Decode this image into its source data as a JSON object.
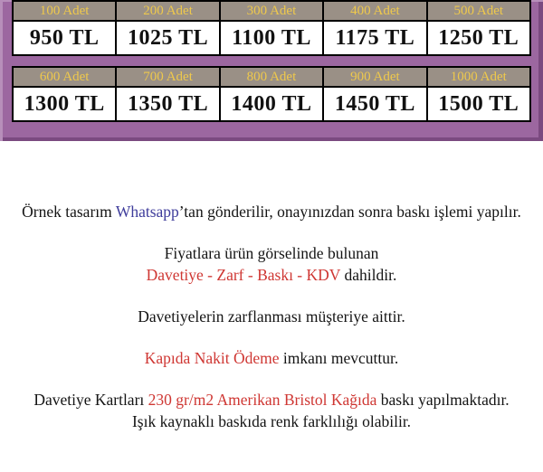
{
  "colors": {
    "banner_purple": "#9c67a0",
    "banner_edge_light": "#b78fba",
    "banner_edge_dark": "#7b4a80",
    "header_cell_bg": "#9a9086",
    "header_cell_text": "#efc94c",
    "price_text": "#111111",
    "highlight_red": "#cf3733",
    "whatsapp_blue": "#3e3c9b"
  },
  "pricing": {
    "table1": {
      "headers": [
        "100 Adet",
        "200 Adet",
        "300 Adet",
        "400 Adet",
        "500 Adet"
      ],
      "prices": [
        "950 TL",
        "1025 TL",
        "1100 TL",
        "1175 TL",
        "1250 TL"
      ]
    },
    "table2": {
      "headers": [
        "600 Adet",
        "700 Adet",
        "800 Adet",
        "900 Adet",
        "1000 Adet"
      ],
      "prices": [
        "1300 TL",
        "1350 TL",
        "1400 TL",
        "1450 TL",
        "1500 TL"
      ]
    }
  },
  "info": {
    "sample": {
      "pre": "Örnek tasarım ",
      "link": "Whatsapp",
      "post": "’tan gönderilir, onayınızdan sonra baskı işlemi yapılır."
    },
    "includes": {
      "line1": "Fiyatlara ürün görselinde bulunan",
      "red": "Davetiye - Zarf - Baskı - KDV",
      "post": " dahildir."
    },
    "envelope": "Davetiyelerin zarflanması müşteriye aittir.",
    "cod": {
      "red": "Kapıda Nakit Ödeme",
      "post": " imkanı mevcuttur."
    },
    "paper": {
      "pre": "Davetiye Kartları ",
      "red": "230 gr/m2 Amerikan Bristol Kağıda",
      "post": " baskı yapılmaktadır.",
      "line2": "Işık kaynaklı baskıda renk farklılığı olabilir."
    }
  }
}
